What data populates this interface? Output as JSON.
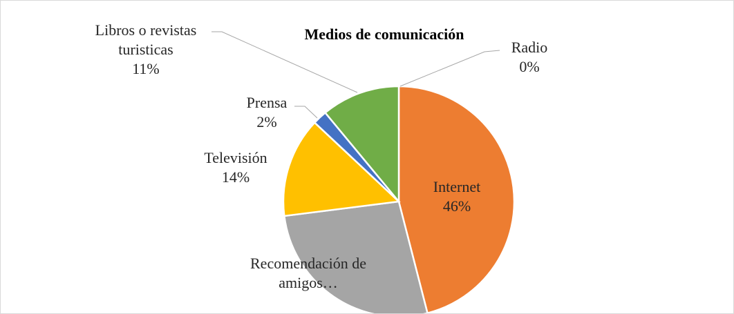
{
  "chart_data": {
    "type": "pie",
    "title": "Medios de comunicación",
    "categories": [
      "Radio",
      "Internet",
      "Recomendación de amigos…",
      "Televisión",
      "Prensa",
      "Libros o revistas turisticas"
    ],
    "values": [
      0,
      46,
      27,
      14,
      2,
      11
    ],
    "value_labels": [
      "0%",
      "46%",
      null,
      "14%",
      "2%",
      "11%"
    ],
    "colors": [
      "#5b9bd5",
      "#ed7d31",
      "#a5a5a5",
      "#ffc000",
      "#4472c4",
      "#70ad47"
    ]
  }
}
